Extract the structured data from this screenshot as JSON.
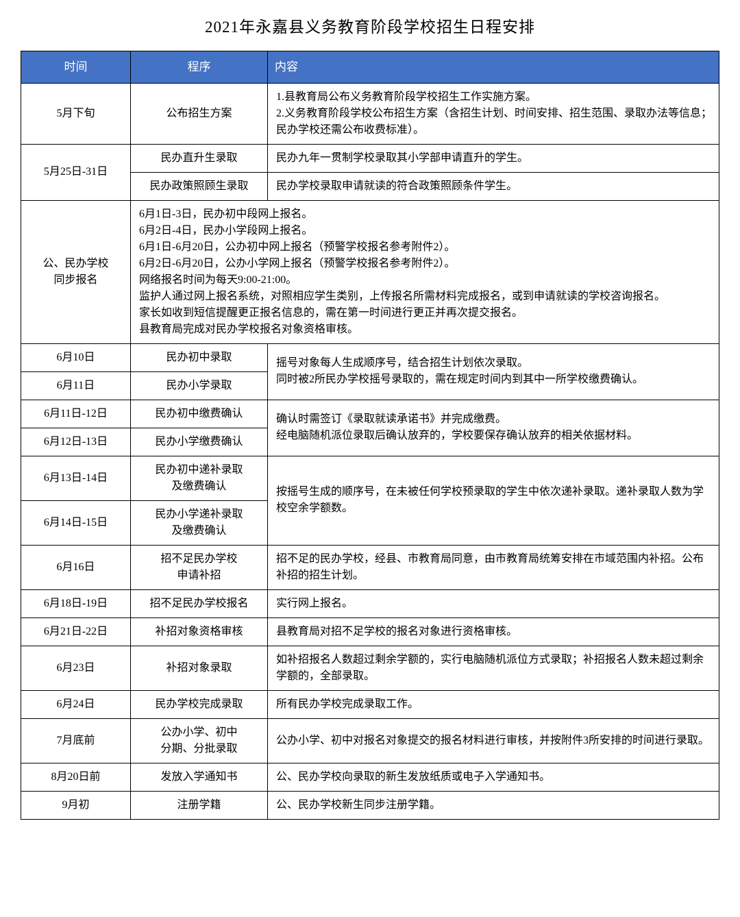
{
  "title": "2021年永嘉县义务教育阶段学校招生日程安排",
  "header_bg": "#4472c4",
  "header_fg": "#ffffff",
  "border_color": "#000000",
  "columns": [
    "时间",
    "程序",
    "内容"
  ],
  "rows": {
    "r1": {
      "time": "5月下旬",
      "proc": "公布招生方案",
      "content": "1.县教育局公布义务教育阶段学校招生工作实施方案。\n2.义务教育阶段学校公布招生方案（含招生计划、时间安排、招生范围、录取办法等信息；民办学校还需公布收费标准）。"
    },
    "r2": {
      "time": "5月25日-31日",
      "proc1": "民办直升生录取",
      "content1": "民办九年一贯制学校录取其小学部申请直升的学生。",
      "proc2": "民办政策照顾生录取",
      "content2": "民办学校录取申请就读的符合政策照顾条件学生。"
    },
    "r3": {
      "time": "公、民办学校\n同步报名",
      "content": "6月1日-3日，民办初中段网上报名。\n6月2日-4日，民办小学段网上报名。\n6月1日-6月20日，公办初中网上报名（预警学校报名参考附件2）。\n6月2日-6月20日，公办小学网上报名（预警学校报名参考附件2）。\n网络报名时间为每天9:00-21:00。\n监护人通过网上报名系统，对照相应学生类别，上传报名所需材料完成报名，或到申请就读的学校咨询报名。\n家长如收到短信提醒更正报名信息的，需在第一时间进行更正并再次提交报名。\n县教育局完成对民办学校报名对象资格审核。"
    },
    "r4": {
      "time1": "6月10日",
      "proc1": "民办初中录取",
      "time2": "6月11日",
      "proc2": "民办小学录取",
      "content": "摇号对象每人生成顺序号，结合招生计划依次录取。\n同时被2所民办学校摇号录取的，需在规定时间内到其中一所学校缴费确认。"
    },
    "r5": {
      "time1": "6月11日-12日",
      "proc1": "民办初中缴费确认",
      "time2": "6月12日-13日",
      "proc2": "民办小学缴费确认",
      "content": "确认时需签订《录取就读承诺书》并完成缴费。\n经电脑随机派位录取后确认放弃的，学校要保存确认放弃的相关依据材料。"
    },
    "r6": {
      "time1": "6月13日-14日",
      "proc1": "民办初中递补录取\n及缴费确认",
      "time2": "6月14日-15日",
      "proc2": "民办小学递补录取\n及缴费确认",
      "content": "按摇号生成的顺序号，在未被任何学校预录取的学生中依次递补录取。递补录取人数为学校空余学额数。"
    },
    "r7": {
      "time": "6月16日",
      "proc": "招不足民办学校\n申请补招",
      "content": "招不足的民办学校，经县、市教育局同意，由市教育局统筹安排在市域范围内补招。公布补招的招生计划。"
    },
    "r8": {
      "time": "6月18日-19日",
      "proc": "招不足民办学校报名",
      "content": "实行网上报名。"
    },
    "r9": {
      "time": "6月21日-22日",
      "proc": "补招对象资格审核",
      "content": "县教育局对招不足学校的报名对象进行资格审核。"
    },
    "r10": {
      "time": "6月23日",
      "proc": "补招对象录取",
      "content": "如补招报名人数超过剩余学额的，实行电脑随机派位方式录取；补招报名人数未超过剩余学额的，全部录取。"
    },
    "r11": {
      "time": "6月24日",
      "proc": "民办学校完成录取",
      "content": "所有民办学校完成录取工作。"
    },
    "r12": {
      "time": "7月底前",
      "proc": "公办小学、初中\n分期、分批录取",
      "content": "公办小学、初中对报名对象提交的报名材料进行审核，并按附件3所安排的时间进行录取。"
    },
    "r13": {
      "time": "8月20日前",
      "proc": "发放入学通知书",
      "content": "公、民办学校向录取的新生发放纸质或电子入学通知书。"
    },
    "r14": {
      "time": "9月初",
      "proc": "注册学籍",
      "content": "公、民办学校新生同步注册学籍。"
    }
  }
}
